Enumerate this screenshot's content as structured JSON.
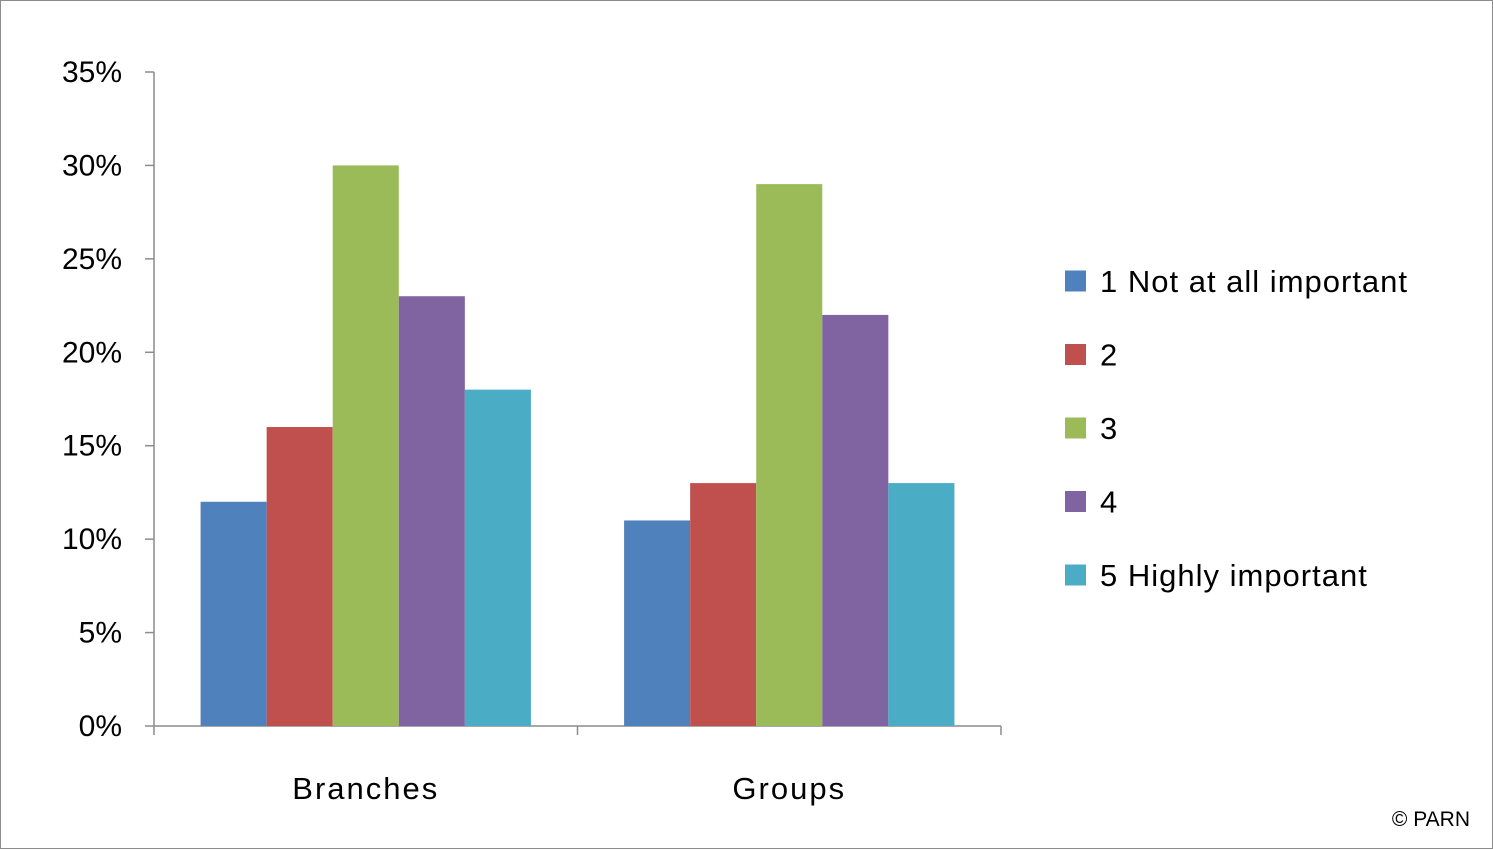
{
  "chart_data": {
    "type": "bar",
    "categories": [
      "Branches",
      "Groups"
    ],
    "series": [
      {
        "name": "1 Not at all important",
        "color": "#4f81bd",
        "values": [
          12,
          11
        ]
      },
      {
        "name": "2",
        "color": "#c0504d",
        "values": [
          16,
          13
        ]
      },
      {
        "name": "3",
        "color": "#9bbb59",
        "values": [
          30,
          29
        ]
      },
      {
        "name": "4",
        "color": "#8064a2",
        "values": [
          23,
          22
        ]
      },
      {
        "name": "5 Highly important",
        "color": "#4bacc6",
        "values": [
          18,
          13
        ]
      }
    ],
    "ylim": [
      0,
      35
    ],
    "yticks": [
      "0%",
      "5%",
      "10%",
      "15%",
      "20%",
      "25%",
      "30%",
      "35%"
    ],
    "ytick_values": [
      0,
      5,
      10,
      15,
      20,
      25,
      30,
      35
    ],
    "y_unit": "%",
    "legend_position": "right",
    "grid": false
  },
  "copyright": "© PARN"
}
